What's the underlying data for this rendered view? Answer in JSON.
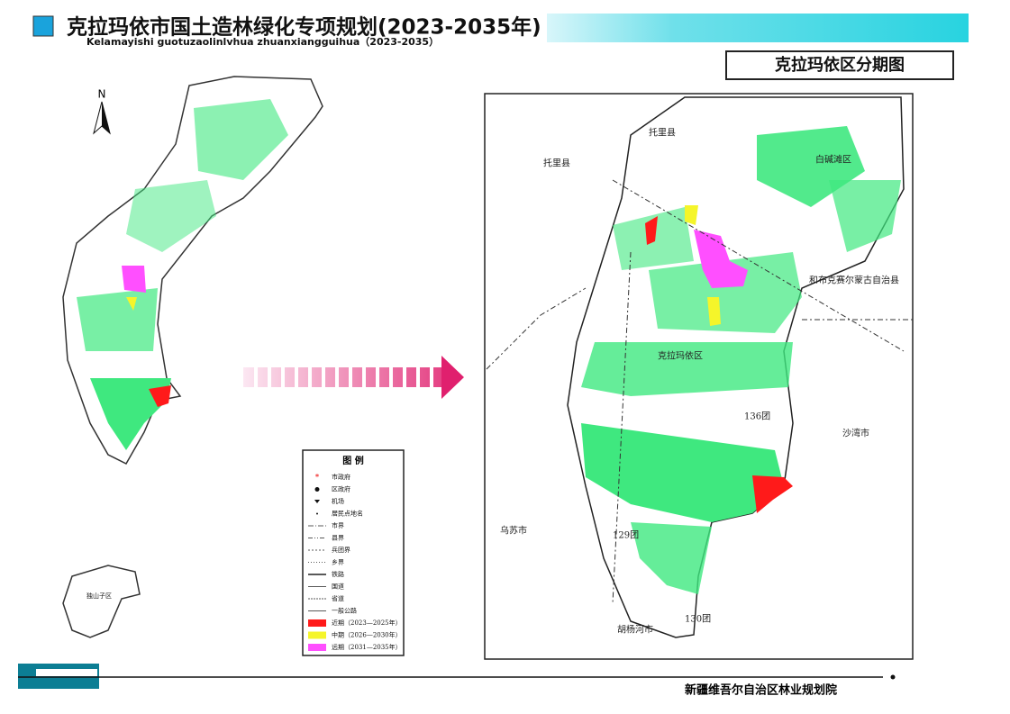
{
  "header": {
    "title": "克拉玛依市国土造林绿化专项规划(2023-2035年)",
    "subtitle": "Kelamayishi guotuzaolinlvhua zhuanxiangguihua（2023-2035）"
  },
  "panel_title": "克拉玛依区分期图",
  "north": "N",
  "overview_labels": [
    "独山子区"
  ],
  "map_labels": [
    "托里县",
    "托里县",
    "白碱滩区",
    "和布克赛尔蒙古自治县",
    "克拉玛依区",
    "136团",
    "沙湾市",
    "乌苏市",
    "129团",
    "130团",
    "胡杨河市"
  ],
  "legend": {
    "title": "图 例",
    "items": [
      "市政府",
      "区政府",
      "机场",
      "居民点地名",
      "市界",
      "县界",
      "兵团界",
      "乡界",
      "铁路",
      "国道",
      "省道",
      "一般公路",
      "近期（2023—2025年）",
      "中期（2026—2030年）",
      "远期（2031—2035年）"
    ]
  },
  "footer": "新疆维吾尔自治区林业规划院"
}
